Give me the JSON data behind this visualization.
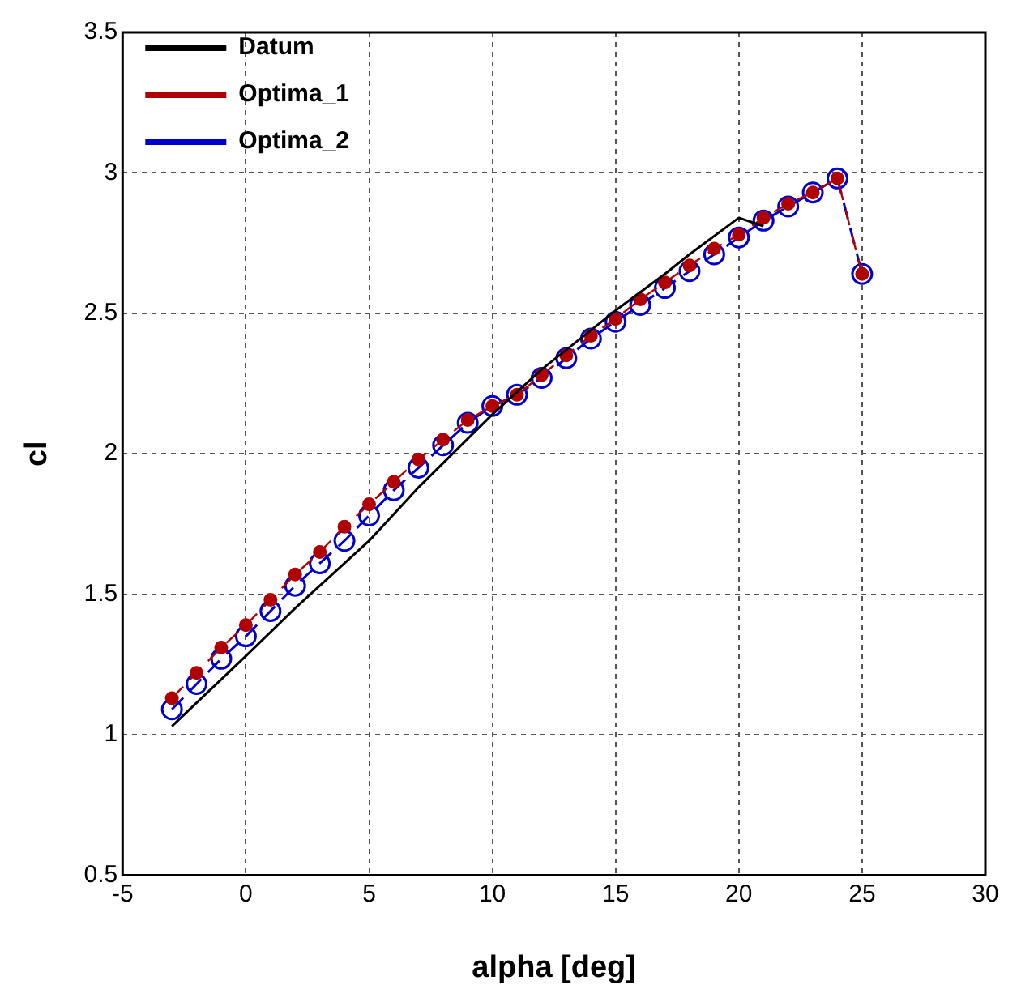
{
  "chart_data": {
    "type": "line",
    "xlabel": "alpha [deg]",
    "ylabel": "cl",
    "xlim": [
      -5,
      30
    ],
    "ylim": [
      0.5,
      3.5
    ],
    "xticks": [
      -5,
      0,
      5,
      10,
      15,
      20,
      25,
      30
    ],
    "yticks": [
      0.5,
      1,
      1.5,
      2,
      2.5,
      3,
      3.5
    ],
    "grid": true,
    "legend": "top left",
    "series": [
      {
        "name": "Datum",
        "color": "#000000",
        "line_style": "solid",
        "marker": "none",
        "x": [
          -3,
          0,
          2,
          5,
          7,
          10,
          12,
          15,
          17,
          18,
          20,
          21
        ],
        "values": [
          1.03,
          1.28,
          1.45,
          1.69,
          1.88,
          2.14,
          2.3,
          2.51,
          2.64,
          2.71,
          2.84,
          2.81
        ]
      },
      {
        "name": "Optima_1",
        "color": "#b00000",
        "line_style": "dashed",
        "marker": "circle",
        "x": [
          -3,
          -2,
          -1,
          0,
          1,
          2,
          3,
          4,
          5,
          6,
          7,
          8,
          9,
          10,
          11,
          12,
          13,
          14,
          15,
          16,
          17,
          18,
          19,
          20,
          21,
          22,
          23,
          24,
          25
        ],
        "values": [
          1.13,
          1.22,
          1.31,
          1.39,
          1.48,
          1.57,
          1.65,
          1.74,
          1.82,
          1.9,
          1.98,
          2.05,
          2.12,
          2.17,
          2.21,
          2.28,
          2.35,
          2.42,
          2.48,
          2.55,
          2.61,
          2.67,
          2.73,
          2.78,
          2.84,
          2.89,
          2.93,
          2.98,
          2.64
        ]
      },
      {
        "name": "Optima_2",
        "color": "#0000cc",
        "line_style": "dashed",
        "marker": "circle",
        "x": [
          -3,
          -2,
          -1,
          0,
          1,
          2,
          3,
          4,
          5,
          6,
          7,
          8,
          9,
          10,
          11,
          12,
          13,
          14,
          15,
          16,
          17,
          18,
          19,
          20,
          21,
          22,
          23,
          24,
          25
        ],
        "values": [
          1.09,
          1.18,
          1.27,
          1.35,
          1.44,
          1.53,
          1.61,
          1.69,
          1.78,
          1.87,
          1.95,
          2.03,
          2.11,
          2.17,
          2.21,
          2.27,
          2.34,
          2.41,
          2.47,
          2.53,
          2.59,
          2.65,
          2.71,
          2.77,
          2.83,
          2.88,
          2.93,
          2.98,
          2.64
        ]
      }
    ]
  }
}
